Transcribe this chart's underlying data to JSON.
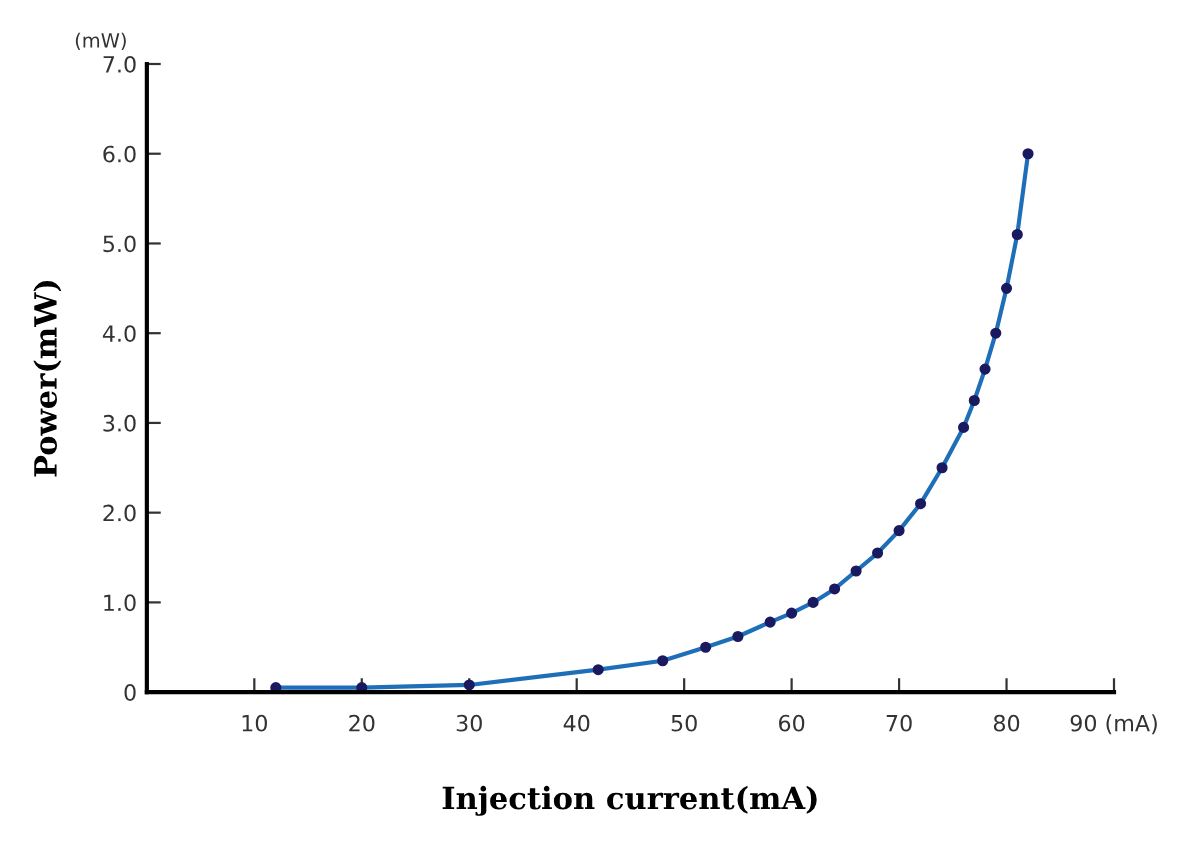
{
  "chart_data": {
    "type": "line",
    "xlabel": "Injection current(mA)",
    "ylabel": "Power(mW)",
    "annotations": [
      "(mW)"
    ],
    "series": [
      {
        "color": "#1f6fb8",
        "x": [
          12,
          20,
          30,
          42,
          48,
          52,
          55,
          58,
          60,
          62,
          64,
          66,
          68,
          70,
          72,
          74,
          76,
          77,
          78,
          79,
          80,
          81,
          82
        ],
        "values": [
          0.05,
          0.05,
          0.08,
          0.25,
          0.35,
          0.5,
          0.62,
          0.78,
          0.88,
          1.0,
          1.15,
          1.35,
          1.55,
          1.8,
          2.1,
          2.5,
          2.95,
          3.25,
          3.6,
          4.0,
          4.5,
          5.1,
          6.0
        ]
      }
    ],
    "marker": "circle",
    "line_style": "solid",
    "grid": false,
    "legend": false,
    "xlim": [
      0,
      90
    ],
    "xticks": [
      10,
      20,
      30,
      40,
      50,
      60,
      70,
      80,
      {
        "value": 90,
        "label": "90 (mA)"
      }
    ],
    "ylim": [
      0,
      7
    ],
    "yticks": [
      0,
      {
        "value": 1,
        "label": "1.0"
      },
      {
        "value": 2,
        "label": "2.0"
      },
      {
        "value": 3,
        "label": "3.0"
      },
      {
        "value": 4,
        "label": "4.0"
      },
      {
        "value": 5,
        "label": "5.0"
      },
      {
        "value": 6,
        "label": "6.0"
      },
      {
        "value": 7,
        "label": "7.0"
      }
    ]
  }
}
